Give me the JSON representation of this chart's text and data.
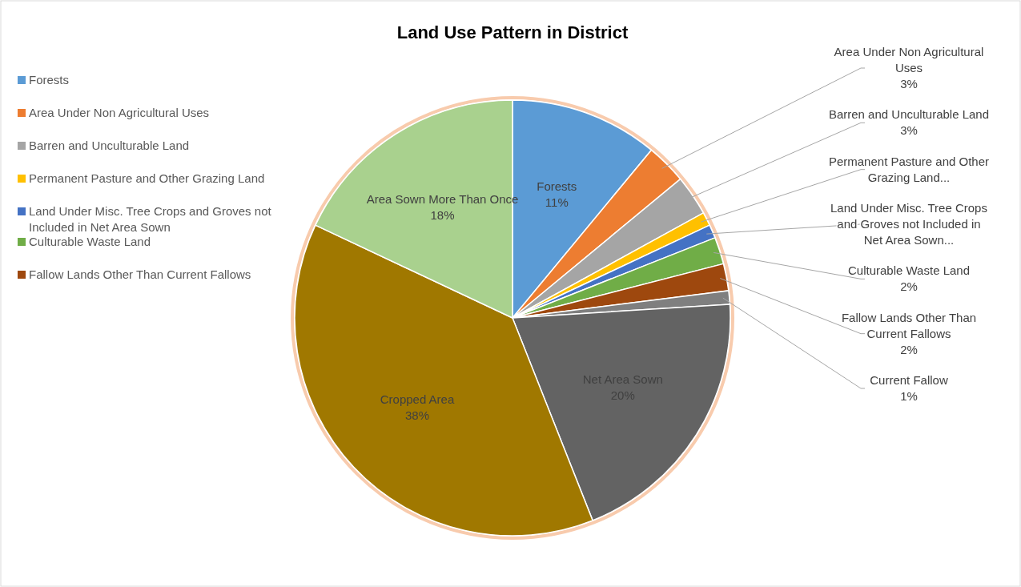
{
  "chart_data": {
    "type": "pie",
    "title": "Land Use Pattern in District",
    "categories": [
      "Forests",
      "Area Under Non Agricultural Uses",
      "Barren and Unculturable Land",
      "Permanent Pasture and Other Grazing Land",
      "Land Under Misc. Tree Crops and Groves not Included in Net Area Sown",
      "Culturable Waste Land",
      "Fallow Lands Other Than Current Fallows",
      "Current Fallow",
      "Net Area Sown",
      "Cropped Area",
      "Area Sown More Than Once"
    ],
    "values": [
      11,
      3,
      3,
      1,
      1,
      2,
      2,
      1,
      20,
      38,
      18
    ],
    "colors": [
      "#5b9bd5",
      "#ed7d31",
      "#a5a5a5",
      "#ffc000",
      "#4472c4",
      "#70ad47",
      "#9e480e",
      "#7f7f7f",
      "#636363",
      "#a07800",
      "#a9d18e"
    ],
    "value_labels": [
      "11%",
      "3%",
      "3%",
      "...",
      "...",
      "2%",
      "2%",
      "1%",
      "20%",
      "38%",
      "18%"
    ],
    "legend": "left"
  }
}
